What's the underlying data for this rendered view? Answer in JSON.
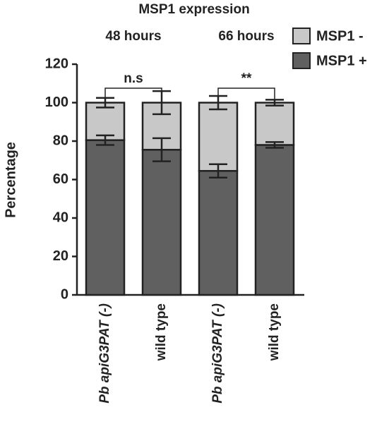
{
  "chart_data": {
    "type": "stacked-bar",
    "title": "MSP1 expression",
    "y_label": "Percentage",
    "categories": [
      "Pb apiG3PAT (-)",
      "wild type",
      "Pb apiG3PAT (-)",
      "wild type"
    ],
    "groups": [
      "48 hours",
      "66 hours"
    ],
    "significance": [
      "n.s",
      "**"
    ],
    "series": [
      {
        "name": "MSP1 +",
        "color": "#606060",
        "values": [
          80.5,
          75.5,
          64.5,
          78
        ],
        "errors": [
          2.5,
          6,
          3.5,
          1.5
        ]
      },
      {
        "name": "MSP1 -",
        "color": "#c8c8c8",
        "values": [
          19.5,
          24.5,
          35.5,
          22
        ],
        "errors": [
          2.5,
          6,
          3.5,
          1.5
        ]
      }
    ],
    "ylim": [
      0,
      120
    ],
    "yticks": [
      0,
      20,
      40,
      60,
      80,
      100,
      120
    ],
    "grid": false
  }
}
